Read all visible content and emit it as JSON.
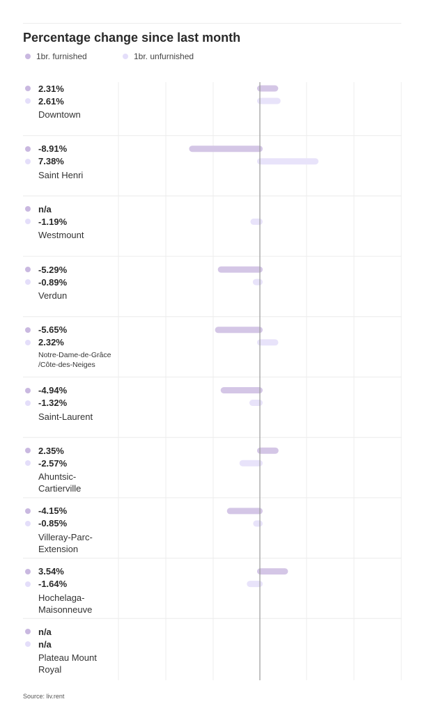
{
  "title": "Percentage change since last month",
  "legend": {
    "furnished": "1br. furnished",
    "unfurnished": "1br. unfurnished"
  },
  "colors": {
    "furnished": "#d4c6e6",
    "unfurnished": "#e8e3fa",
    "furnished_dot": "#c9b8e0",
    "unfurnished_dot": "#e4defa",
    "grid": "#ececec",
    "axis": "#9a9a9a"
  },
  "source": "Source: liv.rent",
  "chart_data": {
    "type": "bar",
    "orientation": "horizontal",
    "title": "Percentage change since last month",
    "x_unit": "%",
    "zero_line": 0,
    "categories": [
      "Downtown",
      "Saint Henri",
      "Westmount",
      "Verdun",
      "Notre-Dame-de-Grâce /Côte-des-Neiges",
      "Saint-Laurent",
      "Ahuntsic-Cartierville",
      "Villeray-Parc-Extension",
      "Hochelaga-Maisonneuve",
      "Plateau Mount Royal"
    ],
    "series": [
      {
        "name": "1br. furnished",
        "values": [
          2.31,
          -8.91,
          null,
          -5.29,
          -5.65,
          -4.94,
          2.35,
          -4.15,
          3.54,
          null
        ]
      },
      {
        "name": "1br. unfurnished",
        "values": [
          2.61,
          7.38,
          -1.19,
          -0.89,
          2.32,
          -1.32,
          -2.57,
          -0.85,
          -1.64,
          null
        ]
      }
    ],
    "rows": [
      {
        "name_lines": [
          "Downtown"
        ],
        "furnished_label": "2.31%",
        "unfurnished_label": "2.61%"
      },
      {
        "name_lines": [
          "Saint Henri"
        ],
        "furnished_label": "-8.91%",
        "unfurnished_label": "7.38%"
      },
      {
        "name_lines": [
          "Westmount"
        ],
        "furnished_label": "n/a",
        "unfurnished_label": "-1.19%"
      },
      {
        "name_lines": [
          "Verdun"
        ],
        "furnished_label": "-5.29%",
        "unfurnished_label": "-0.89%"
      },
      {
        "name_lines": [
          "Notre-Dame-de-Grâce",
          "/Côte-des-Neiges"
        ],
        "furnished_label": "-5.65%",
        "unfurnished_label": "2.32%",
        "small": true
      },
      {
        "name_lines": [
          "Saint-Laurent"
        ],
        "furnished_label": "-4.94%",
        "unfurnished_label": "-1.32%"
      },
      {
        "name_lines": [
          "Ahuntsic-",
          "Cartierville"
        ],
        "furnished_label": "2.35%",
        "unfurnished_label": "-2.57%"
      },
      {
        "name_lines": [
          "Villeray-Parc-",
          "Extension"
        ],
        "furnished_label": "-4.15%",
        "unfurnished_label": "-0.85%"
      },
      {
        "name_lines": [
          "Hochelaga-",
          "Maisonneuve"
        ],
        "furnished_label": "3.54%",
        "unfurnished_label": "-1.64%"
      },
      {
        "name_lines": [
          "Plateau Mount",
          "Royal"
        ],
        "furnished_label": "n/a",
        "unfurnished_label": "n/a"
      }
    ]
  }
}
